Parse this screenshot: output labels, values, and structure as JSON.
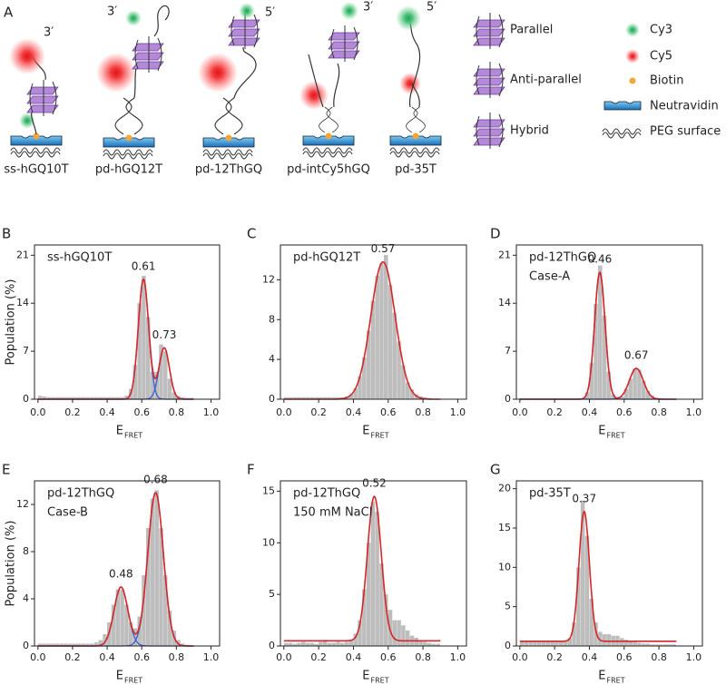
{
  "panel_a": {
    "label": "A",
    "constructs": [
      {
        "name": "ss-hGQ10T",
        "end": "3′"
      },
      {
        "name": "pd-hGQ12T",
        "end": "3′"
      },
      {
        "name": "pd-12ThGQ",
        "end": "5′"
      },
      {
        "name": "pd-intCy5hGQ",
        "end": "3′"
      },
      {
        "name": "pd-35T",
        "end": "5′"
      }
    ],
    "legend": [
      "Parallel",
      "Anti-parallel",
      "Hybrid",
      "Cy3",
      "Cy5",
      "Biotin",
      "Neutravidin",
      "PEG surface"
    ]
  },
  "chart_data": [
    {
      "type": "histogram",
      "panel_label": "B",
      "annotation": [
        "ss-hGQ10T"
      ],
      "bins": [
        0,
        0.025,
        0.05,
        0.075,
        0.1,
        0.125,
        0.15,
        0.175,
        0.2,
        0.225,
        0.25,
        0.275,
        0.3,
        0.325,
        0.35,
        0.375,
        0.4,
        0.425,
        0.45,
        0.475,
        0.5,
        0.525,
        0.55,
        0.575,
        0.6,
        0.625,
        0.65,
        0.675,
        0.7,
        0.725,
        0.75,
        0.775,
        0.8,
        0.825,
        0.85,
        0.875,
        0.9
      ],
      "values": [
        0.5,
        0.4,
        0.3,
        0.3,
        0.3,
        0.3,
        0.3,
        0.3,
        0.3,
        0.3,
        0.3,
        0.3,
        0.3,
        0.3,
        0.3,
        0.3,
        0.3,
        0.3,
        0.3,
        0.3,
        0.5,
        1.5,
        5,
        14,
        18,
        12,
        4,
        4,
        8,
        7,
        3,
        1,
        0.5,
        0.3,
        0.2,
        0.2
      ],
      "color": "#bdbdbd",
      "fit_color": "#d62728",
      "component_color": "#3a5fcd",
      "fit_offset": 0,
      "fits": [
        {
          "center": 0.61,
          "amplitude": 17.5,
          "sigma": 0.03
        },
        {
          "center": 0.73,
          "amplitude": 7.5,
          "sigma": 0.03
        }
      ],
      "xlim": [
        -0.02,
        1.05
      ],
      "ylim": [
        0,
        22.5
      ],
      "xticks": [
        {
          "value": 0,
          "label": "0.0"
        },
        0.2,
        0.4,
        0.6,
        0.8,
        {
          "value": 1,
          "label": "1.0"
        }
      ],
      "yticks": [
        0,
        7,
        14,
        21
      ],
      "x_label": "E",
      "x_label_sub": "FRET",
      "y_label": "Population (%)"
    },
    {
      "type": "histogram",
      "panel_label": "C",
      "annotation": [
        "pd-hGQ12T"
      ],
      "bins": [
        0,
        0.025,
        0.05,
        0.075,
        0.1,
        0.125,
        0.15,
        0.175,
        0.2,
        0.225,
        0.25,
        0.275,
        0.3,
        0.325,
        0.35,
        0.375,
        0.4,
        0.425,
        0.45,
        0.475,
        0.5,
        0.525,
        0.55,
        0.575,
        0.6,
        0.625,
        0.65,
        0.675,
        0.7,
        0.725,
        0.75,
        0.775,
        0.8,
        0.825,
        0.85,
        0.875,
        0.9
      ],
      "values": [
        0.2,
        0.2,
        0.2,
        0.2,
        0.2,
        0.2,
        0.2,
        0.2,
        0.2,
        0.2,
        0.2,
        0.2,
        0.2,
        0.2,
        0.3,
        0.5,
        1.1,
        2.3,
        4.2,
        6.9,
        9.9,
        12.4,
        13.7,
        14.5,
        11.5,
        8.7,
        5.8,
        3.4,
        1.7,
        1.0,
        0.5,
        0.3,
        0.2,
        0.1,
        0,
        0
      ],
      "color": "#bdbdbd",
      "fit_color": "#d62728",
      "component_color": "#3a5fcd",
      "fit_offset": 0,
      "fits": [
        {
          "center": 0.57,
          "amplitude": 13.8,
          "sigma": 0.07
        }
      ],
      "xlim": [
        -0.02,
        1.05
      ],
      "ylim": [
        0,
        15.5
      ],
      "xticks": [
        {
          "value": 0,
          "label": "0.0"
        },
        0.2,
        0.4,
        0.6,
        0.8,
        {
          "value": 1,
          "label": "1.0"
        }
      ],
      "yticks": [
        0,
        4,
        8,
        12
      ],
      "x_label": "E",
      "x_label_sub": "FRET"
    },
    {
      "type": "histogram",
      "panel_label": "D",
      "annotation": [
        "pd-12ThGQ",
        "Case-A"
      ],
      "bins": [
        0,
        0.025,
        0.05,
        0.075,
        0.1,
        0.125,
        0.15,
        0.175,
        0.2,
        0.225,
        0.25,
        0.275,
        0.3,
        0.325,
        0.35,
        0.375,
        0.4,
        0.425,
        0.45,
        0.475,
        0.5,
        0.525,
        0.55,
        0.575,
        0.6,
        0.625,
        0.65,
        0.675,
        0.7,
        0.725,
        0.75,
        0.775,
        0.8,
        0.825,
        0.85,
        0.875,
        0.9
      ],
      "values": [
        0.1,
        0.1,
        0.1,
        0.1,
        0.1,
        0.1,
        0.1,
        0.1,
        0.1,
        0.1,
        0.1,
        0.1,
        0.1,
        0.1,
        0.1,
        1.0,
        5.3,
        13.9,
        19.5,
        12.2,
        4,
        0.7,
        0.3,
        0.4,
        1.5,
        3,
        4.5,
        4.3,
        2.7,
        1.2,
        0.5,
        0.2,
        0.1,
        0,
        0,
        0
      ],
      "color": "#bdbdbd",
      "fit_color": "#d62728",
      "component_color": "#3a5fcd",
      "fit_offset": 0,
      "fits": [
        {
          "center": 0.46,
          "amplitude": 18.5,
          "sigma": 0.03
        },
        {
          "center": 0.67,
          "amplitude": 4.5,
          "sigma": 0.04
        }
      ],
      "xlim": [
        -0.02,
        1.05
      ],
      "ylim": [
        0,
        22.5
      ],
      "xticks": [
        {
          "value": 0,
          "label": "0.0"
        },
        0.2,
        0.4,
        0.6,
        0.8,
        {
          "value": 1,
          "label": "1.0"
        }
      ],
      "yticks": [
        0,
        7,
        14,
        21
      ],
      "x_label": "E",
      "x_label_sub": "FRET"
    },
    {
      "type": "histogram",
      "panel_label": "E",
      "annotation": [
        "pd-12ThGQ",
        "Case-B"
      ],
      "bins": [
        0,
        0.025,
        0.05,
        0.075,
        0.1,
        0.125,
        0.15,
        0.175,
        0.2,
        0.225,
        0.25,
        0.275,
        0.3,
        0.325,
        0.35,
        0.375,
        0.4,
        0.425,
        0.45,
        0.475,
        0.5,
        0.525,
        0.55,
        0.575,
        0.6,
        0.625,
        0.65,
        0.675,
        0.7,
        0.725,
        0.75,
        0.775,
        0.8,
        0.825,
        0.85,
        0.875,
        0.9
      ],
      "values": [
        0.2,
        0.2,
        0.2,
        0.2,
        0.2,
        0.2,
        0.2,
        0.2,
        0.2,
        0.2,
        0.2,
        0.2,
        0.2,
        0.3,
        0.5,
        1,
        2,
        3.5,
        4.8,
        4.8,
        3.5,
        2,
        1.5,
        2.5,
        6,
        10,
        12.5,
        13.2,
        10,
        6,
        3,
        1.3,
        0.5,
        0.2,
        0.1,
        0
      ],
      "color": "#bdbdbd",
      "fit_color": "#d62728",
      "component_color": "#3a5fcd",
      "fit_offset": 0,
      "fits": [
        {
          "center": 0.48,
          "amplitude": 5,
          "sigma": 0.04
        },
        {
          "center": 0.68,
          "amplitude": 13,
          "sigma": 0.045
        }
      ],
      "xlim": [
        -0.02,
        1.05
      ],
      "ylim": [
        0,
        14
      ],
      "xticks": [
        {
          "value": 0,
          "label": "0.0"
        },
        0.2,
        0.4,
        0.6,
        0.8,
        {
          "value": 1,
          "label": "1.0"
        }
      ],
      "yticks": [
        0,
        4,
        8,
        12
      ],
      "x_label": "E",
      "x_label_sub": "FRET",
      "y_label": "Population (%)"
    },
    {
      "type": "histogram",
      "panel_label": "F",
      "annotation": [
        "pd-12ThGQ",
        "150 mM NaCl"
      ],
      "bins": [
        0,
        0.025,
        0.05,
        0.075,
        0.1,
        0.125,
        0.15,
        0.175,
        0.2,
        0.225,
        0.25,
        0.275,
        0.3,
        0.325,
        0.35,
        0.375,
        0.4,
        0.425,
        0.45,
        0.475,
        0.5,
        0.525,
        0.55,
        0.575,
        0.6,
        0.625,
        0.65,
        0.675,
        0.7,
        0.725,
        0.75,
        0.775,
        0.8,
        0.825,
        0.85,
        0.875,
        0.9
      ],
      "values": [
        0.3,
        0.3,
        0.2,
        0.3,
        0.4,
        0.3,
        0.3,
        0.2,
        0.4,
        0.6,
        0.3,
        0.3,
        0.4,
        0.3,
        0.4,
        0.6,
        1.2,
        2.5,
        5.5,
        10,
        14,
        13,
        8,
        5,
        3.5,
        2.5,
        2.5,
        2,
        1.5,
        1,
        0.8,
        0.5,
        0.4,
        0.3,
        0.2,
        0.2
      ],
      "color": "#bdbdbd",
      "fit_color": "#d62728",
      "component_color": "#3a5fcd",
      "fit_offset": 0.5,
      "fits": [
        {
          "center": 0.52,
          "amplitude": 14,
          "sigma": 0.04
        }
      ],
      "xlim": [
        -0.02,
        1.05
      ],
      "ylim": [
        0,
        16
      ],
      "xticks": [
        {
          "value": 0,
          "label": "0.0"
        },
        0.2,
        0.4,
        0.6,
        0.8,
        {
          "value": 1,
          "label": "1.0"
        }
      ],
      "yticks": [
        0,
        5,
        10,
        15
      ],
      "x_label": "E",
      "x_label_sub": "FRET"
    },
    {
      "type": "histogram",
      "panel_label": "G",
      "annotation": [
        "pd-35T"
      ],
      "bins": [
        0,
        0.025,
        0.05,
        0.075,
        0.1,
        0.125,
        0.15,
        0.175,
        0.2,
        0.225,
        0.25,
        0.275,
        0.3,
        0.325,
        0.35,
        0.375,
        0.4,
        0.425,
        0.45,
        0.475,
        0.5,
        0.525,
        0.55,
        0.575,
        0.6,
        0.625,
        0.65,
        0.675,
        0.7,
        0.725,
        0.75,
        0.775,
        0.8,
        0.825,
        0.85,
        0.875,
        0.9
      ],
      "values": [
        0.6,
        0.6,
        0.6,
        0.6,
        0.6,
        0.6,
        0.6,
        0.6,
        0.6,
        0.6,
        0.7,
        1,
        3,
        10,
        18.5,
        14,
        6,
        3,
        1.8,
        1.5,
        1.5,
        1.3,
        1.3,
        1,
        0.8,
        0.6,
        0.5,
        0.4,
        0.3,
        0.3,
        0.2,
        0.2,
        0.2,
        0.2,
        0.2,
        0.2
      ],
      "color": "#bdbdbd",
      "fit_color": "#d62728",
      "component_color": "#3a5fcd",
      "fit_offset": 0.6,
      "fits": [
        {
          "center": 0.37,
          "amplitude": 16.5,
          "sigma": 0.03
        }
      ],
      "xlim": [
        -0.02,
        1.05
      ],
      "ylim": [
        0,
        21
      ],
      "xticks": [
        {
          "value": 0,
          "label": "0.0"
        },
        0.2,
        0.4,
        0.6,
        0.8,
        {
          "value": 1,
          "label": "1.0"
        }
      ],
      "yticks": [
        0,
        5,
        10,
        15,
        20
      ],
      "x_label": "E",
      "x_label_sub": "FRET"
    }
  ]
}
